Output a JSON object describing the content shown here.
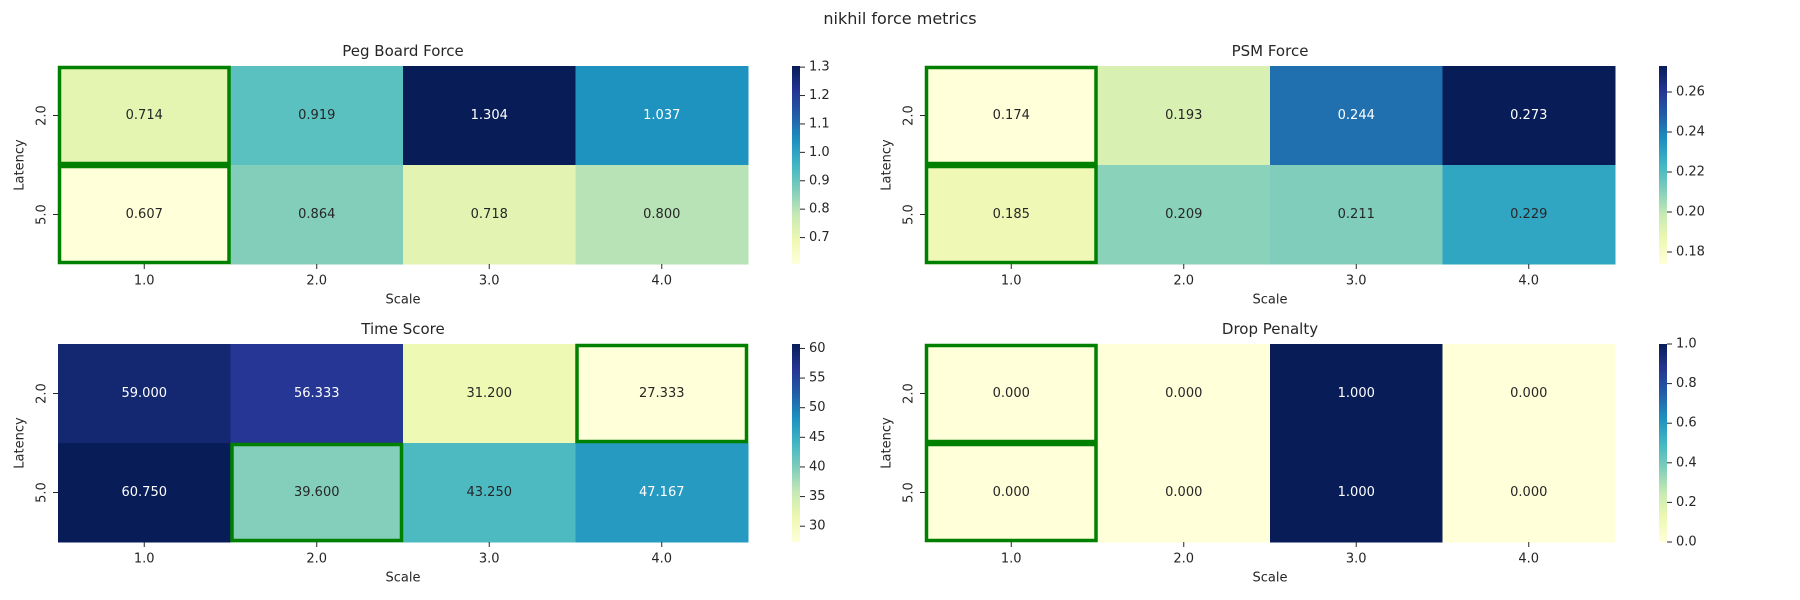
{
  "figure": {
    "suptitle": "nikhil force metrics"
  },
  "chart_data": [
    {
      "type": "heatmap",
      "title": "Peg Board Force",
      "xlabel": "Scale",
      "ylabel": "Latency",
      "x_categories": [
        "1.0",
        "2.0",
        "3.0",
        "4.0"
      ],
      "y_categories": [
        "2.0",
        "5.0"
      ],
      "values": [
        [
          0.714,
          0.919,
          1.304,
          1.037
        ],
        [
          0.607,
          0.864,
          0.718,
          0.8
        ]
      ],
      "cell_labels": [
        [
          "0.714",
          "0.919",
          "1.304",
          "1.037"
        ],
        [
          "0.607",
          "0.864",
          "0.718",
          "0.800"
        ]
      ],
      "colormap": "YlGnBu",
      "colorbar_range": [
        0.607,
        1.304
      ],
      "colorbar_ticks": [
        "0.7",
        "0.8",
        "0.9",
        "1.0",
        "1.1",
        "1.2",
        "1.3"
      ],
      "colorbar_tick_values": [
        0.7,
        0.8,
        0.9,
        1.0,
        1.1,
        1.2,
        1.3
      ],
      "highlighted_cells": [
        [
          0,
          0
        ],
        [
          1,
          0
        ]
      ],
      "highlight_color": "#008000"
    },
    {
      "type": "heatmap",
      "title": "PSM Force",
      "xlabel": "Scale",
      "ylabel": "Latency",
      "x_categories": [
        "1.0",
        "2.0",
        "3.0",
        "4.0"
      ],
      "y_categories": [
        "2.0",
        "5.0"
      ],
      "values": [
        [
          0.174,
          0.193,
          0.244,
          0.273
        ],
        [
          0.185,
          0.209,
          0.211,
          0.229
        ]
      ],
      "cell_labels": [
        [
          "0.174",
          "0.193",
          "0.244",
          "0.273"
        ],
        [
          "0.185",
          "0.209",
          "0.211",
          "0.229"
        ]
      ],
      "colormap": "YlGnBu",
      "colorbar_range": [
        0.174,
        0.273
      ],
      "colorbar_ticks": [
        "0.18",
        "0.20",
        "0.22",
        "0.24",
        "0.26"
      ],
      "colorbar_tick_values": [
        0.18,
        0.2,
        0.22,
        0.24,
        0.26
      ],
      "highlighted_cells": [
        [
          0,
          0
        ],
        [
          1,
          0
        ]
      ],
      "highlight_color": "#008000"
    },
    {
      "type": "heatmap",
      "title": "Time Score",
      "xlabel": "Scale",
      "ylabel": "Latency",
      "x_categories": [
        "1.0",
        "2.0",
        "3.0",
        "4.0"
      ],
      "y_categories": [
        "2.0",
        "5.0"
      ],
      "values": [
        [
          59.0,
          56.333,
          31.2,
          27.333
        ],
        [
          60.75,
          39.6,
          43.25,
          47.167
        ]
      ],
      "cell_labels": [
        [
          "59.000",
          "56.333",
          "31.200",
          "27.333"
        ],
        [
          "60.750",
          "39.600",
          "43.250",
          "47.167"
        ]
      ],
      "colormap": "YlGnBu",
      "colorbar_range": [
        27.333,
        60.75
      ],
      "colorbar_ticks": [
        "30",
        "35",
        "40",
        "45",
        "50",
        "55",
        "60"
      ],
      "colorbar_tick_values": [
        30,
        35,
        40,
        45,
        50,
        55,
        60
      ],
      "highlighted_cells": [
        [
          0,
          3
        ],
        [
          1,
          1
        ]
      ],
      "highlight_color": "#008000"
    },
    {
      "type": "heatmap",
      "title": "Drop Penalty",
      "xlabel": "Scale",
      "ylabel": "Latency",
      "x_categories": [
        "1.0",
        "2.0",
        "3.0",
        "4.0"
      ],
      "y_categories": [
        "2.0",
        "5.0"
      ],
      "values": [
        [
          0.0,
          0.0,
          1.0,
          0.0
        ],
        [
          0.0,
          0.0,
          1.0,
          0.0
        ]
      ],
      "cell_labels": [
        [
          "0.000",
          "0.000",
          "1.000",
          "0.000"
        ],
        [
          "0.000",
          "0.000",
          "1.000",
          "0.000"
        ]
      ],
      "colormap": "YlGnBu",
      "colorbar_range": [
        0.0,
        1.0
      ],
      "colorbar_ticks": [
        "0.0",
        "0.2",
        "0.4",
        "0.6",
        "0.8",
        "1.0"
      ],
      "colorbar_tick_values": [
        0.0,
        0.2,
        0.4,
        0.6,
        0.8,
        1.0
      ],
      "highlighted_cells": [
        [
          0,
          0
        ],
        [
          1,
          0
        ]
      ],
      "highlight_color": "#008000"
    }
  ]
}
